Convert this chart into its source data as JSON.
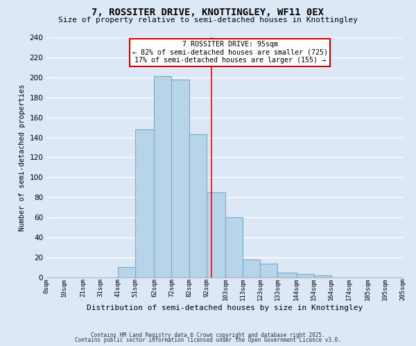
{
  "title": "7, ROSSITER DRIVE, KNOTTINGLEY, WF11 0EX",
  "subtitle": "Size of property relative to semi-detached houses in Knottingley",
  "xlabel": "Distribution of semi-detached houses by size in Knottingley",
  "ylabel": "Number of semi-detached properties",
  "bar_edges": [
    0,
    10,
    21,
    31,
    41,
    51,
    62,
    72,
    82,
    92,
    103,
    113,
    123,
    133,
    144,
    154,
    164,
    174,
    185,
    195,
    205
  ],
  "bar_heights": [
    0,
    0,
    0,
    0,
    10,
    148,
    201,
    198,
    143,
    85,
    60,
    18,
    14,
    5,
    3,
    2,
    0,
    0,
    0,
    0
  ],
  "tick_labels": [
    "0sqm",
    "10sqm",
    "21sqm",
    "31sqm",
    "41sqm",
    "51sqm",
    "62sqm",
    "72sqm",
    "82sqm",
    "92sqm",
    "103sqm",
    "113sqm",
    "123sqm",
    "133sqm",
    "144sqm",
    "154sqm",
    "164sqm",
    "174sqm",
    "185sqm",
    "195sqm",
    "205sqm"
  ],
  "bar_color": "#b8d4e8",
  "bar_edge_color": "#7aaac8",
  "background_color": "#dce8f5",
  "plot_bg_color": "#dce8f5",
  "grid_color": "#ffffff",
  "vline_x": 95,
  "vline_color": "red",
  "annotation_title": "7 ROSSITER DRIVE: 95sqm",
  "annotation_line1": "← 82% of semi-detached houses are smaller (725)",
  "annotation_line2": "17% of semi-detached houses are larger (155) →",
  "annotation_box_color": "#ffffff",
  "annotation_box_edge_color": "#cc0000",
  "ylim": [
    0,
    240
  ],
  "yticks": [
    0,
    20,
    40,
    60,
    80,
    100,
    120,
    140,
    160,
    180,
    200,
    220,
    240
  ],
  "footer1": "Contains HM Land Registry data © Crown copyright and database right 2025.",
  "footer2": "Contains public sector information licensed under the Open Government Licence v3.0."
}
